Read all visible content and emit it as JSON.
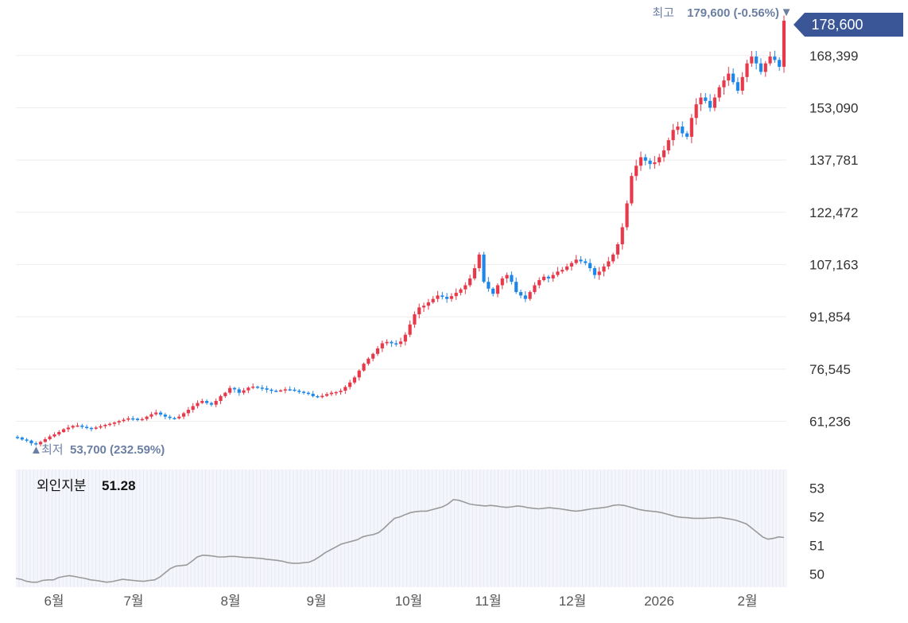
{
  "chart_data": [
    {
      "type": "candlestick",
      "current_price_label": "178,600",
      "high_annotation": {
        "prefix": "최고",
        "value_text": "179,600 (-0.56%)",
        "marker": "▼"
      },
      "low_annotation": {
        "prefix": "최저",
        "value_text": "53,700 (232.59%)",
        "marker": "▲"
      },
      "y_ticks": [
        "168,399",
        "153,090",
        "137,781",
        "122,472",
        "107,163",
        "91,854",
        "76,545",
        "61,236"
      ],
      "y_tick_values": [
        168399,
        153090,
        137781,
        122472,
        107163,
        91854,
        76545,
        61236
      ],
      "ylim": [
        49000,
        183500
      ],
      "x_labels": [
        "6월",
        "7월",
        "8월",
        "9월",
        "10월",
        "11월",
        "12월",
        "2026",
        "2월"
      ],
      "grid": true,
      "up_color": "#e8394a",
      "down_color": "#1f87e8",
      "close_series": [
        56500,
        55900,
        55600,
        54800,
        54500,
        55200,
        56000,
        56800,
        57400,
        58100,
        58900,
        59400,
        59900,
        60000,
        59600,
        59300,
        59100,
        59400,
        59800,
        60200,
        60500,
        60900,
        61300,
        61700,
        62100,
        62000,
        61600,
        61900,
        62600,
        63300,
        63800,
        63200,
        62600,
        62200,
        62100,
        62600,
        63600,
        64600,
        65700,
        66600,
        67200,
        66600,
        66100,
        67200,
        68600,
        69600,
        71000,
        70600,
        69600,
        70300,
        71100,
        71400,
        71100,
        70900,
        70500,
        70200,
        70100,
        70300,
        70600,
        70500,
        70200,
        69900,
        69600,
        69300,
        68600,
        68300,
        68700,
        69200,
        69600,
        69800,
        70200,
        71300,
        72600,
        74100,
        76100,
        78100,
        79600,
        81000,
        82600,
        84100,
        84500,
        84100,
        83900,
        84600,
        86600,
        89600,
        92600,
        94600,
        95100,
        96100,
        97100,
        98100,
        97700,
        97100,
        97900,
        98900,
        99900,
        101100,
        103100,
        106100,
        110100,
        102100,
        100100,
        98600,
        101100,
        103100,
        104100,
        102100,
        99100,
        98100,
        97100,
        99100,
        101100,
        102600,
        103600,
        103100,
        104100,
        105100,
        105600,
        106600,
        107600,
        108600,
        108100,
        107600,
        106100,
        104100,
        105100,
        106600,
        108100,
        110100,
        113100,
        118100,
        125100,
        133100,
        136100,
        138600,
        137600,
        136600,
        137100,
        138600,
        140600,
        143600,
        146600,
        147600,
        145600,
        144600,
        150100,
        154100,
        156100,
        155100,
        153100,
        156100,
        159100,
        161100,
        163100,
        160600,
        158100,
        162100,
        166100,
        168100,
        166100,
        163600,
        166100,
        168100,
        167100,
        165100,
        178600
      ],
      "sub_chart": {
        "type": "line",
        "title": "외인지분",
        "current_value": "51.28",
        "y_ticks": [
          "53",
          "52",
          "51",
          "50"
        ],
        "y_tick_values": [
          53,
          52,
          51,
          50
        ],
        "ylim": [
          49.6,
          53.6
        ],
        "values": [
          49.85,
          49.82,
          49.75,
          49.72,
          49.72,
          49.78,
          49.8,
          49.8,
          49.88,
          49.92,
          49.95,
          49.92,
          49.88,
          49.85,
          49.8,
          49.78,
          49.75,
          49.72,
          49.74,
          49.78,
          49.82,
          49.8,
          49.78,
          49.76,
          49.75,
          49.78,
          49.8,
          49.9,
          50.05,
          50.2,
          50.28,
          50.3,
          50.32,
          50.45,
          50.6,
          50.66,
          50.65,
          50.63,
          50.6,
          50.6,
          50.62,
          50.62,
          50.6,
          50.58,
          50.58,
          50.56,
          50.55,
          50.52,
          50.5,
          50.48,
          50.45,
          50.4,
          50.38,
          50.38,
          50.4,
          50.42,
          50.5,
          50.62,
          50.75,
          50.85,
          50.95,
          51.05,
          51.1,
          51.15,
          51.2,
          51.3,
          51.35,
          51.38,
          51.45,
          51.6,
          51.78,
          51.95,
          52.0,
          52.08,
          52.15,
          52.18,
          52.2,
          52.2,
          52.25,
          52.3,
          52.35,
          52.45,
          52.6,
          52.58,
          52.52,
          52.45,
          52.42,
          52.4,
          52.38,
          52.4,
          52.38,
          52.35,
          52.33,
          52.35,
          52.38,
          52.36,
          52.32,
          52.3,
          52.28,
          52.3,
          52.32,
          52.3,
          52.28,
          52.25,
          52.22,
          52.2,
          52.22,
          52.25,
          52.28,
          52.3,
          52.32,
          52.35,
          52.4,
          52.42,
          52.4,
          52.35,
          52.3,
          52.25,
          52.22,
          52.2,
          52.18,
          52.15,
          52.1,
          52.05,
          52.0,
          51.98,
          51.97,
          51.95,
          51.95,
          51.95,
          51.96,
          51.97,
          51.98,
          51.95,
          51.92,
          51.88,
          51.82,
          51.75,
          51.6,
          51.45,
          51.3,
          51.22,
          51.25,
          51.3,
          51.28
        ]
      }
    }
  ]
}
